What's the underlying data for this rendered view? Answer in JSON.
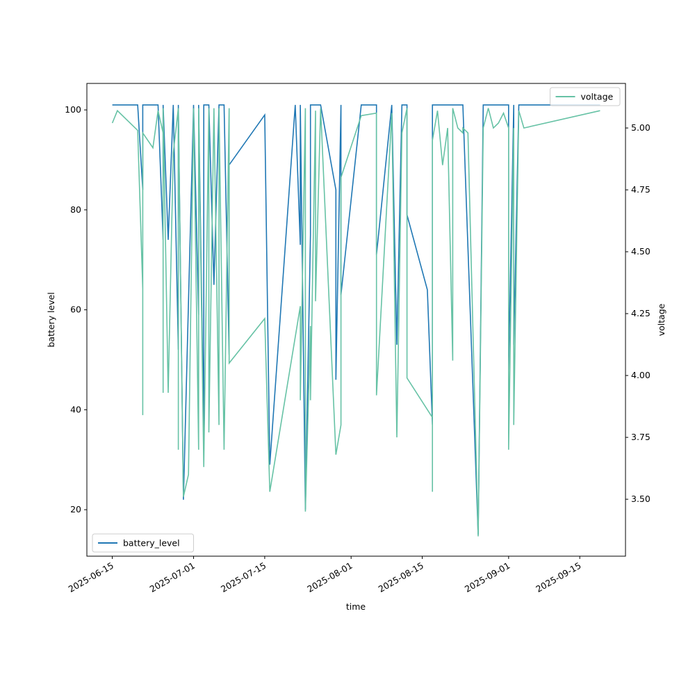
{
  "chart_data": {
    "type": "line",
    "xlabel": "time",
    "ylabel": "battery level",
    "y2label": "voltage",
    "xlim": [
      "2025-06-10",
      "2025-09-24"
    ],
    "xticks": [
      "2025-06-15",
      "2025-07-01",
      "2025-07-15",
      "2025-08-01",
      "2025-08-15",
      "2025-09-01",
      "2025-09-15"
    ],
    "ylim": [
      10.7,
      105.3
    ],
    "yticks": [
      20,
      40,
      60,
      80,
      100
    ],
    "y2lim": [
      3.27,
      5.18
    ],
    "y2ticks": [
      {
        "value": 3.5,
        "label": "3.50"
      },
      {
        "value": 3.75,
        "label": "3.75"
      },
      {
        "value": 4.0,
        "label": "4.00"
      },
      {
        "value": 4.25,
        "label": "4.25"
      },
      {
        "value": 4.5,
        "label": "4.50"
      },
      {
        "value": 4.75,
        "label": "4.75"
      },
      {
        "value": 5.0,
        "label": "5.00"
      }
    ],
    "series": [
      {
        "name": "battery_level",
        "color": "#1f77b4",
        "legend": "lower left",
        "x": [
          "2025-06-15",
          "2025-06-20",
          "2025-06-21",
          "2025-06-21",
          "2025-06-24",
          "2025-06-25",
          "2025-06-25",
          "2025-06-26",
          "2025-06-27",
          "2025-06-28",
          "2025-06-28",
          "2025-06-29",
          "2025-07-01",
          "2025-07-02",
          "2025-07-02",
          "2025-07-03",
          "2025-07-03",
          "2025-07-04",
          "2025-07-05",
          "2025-07-06",
          "2025-07-07",
          "2025-07-08",
          "2025-07-08",
          "2025-07-15",
          "2025-07-16",
          "2025-07-21",
          "2025-07-22",
          "2025-07-22",
          "2025-07-23",
          "2025-07-24",
          "2025-07-24",
          "2025-07-26",
          "2025-07-29",
          "2025-07-29",
          "2025-07-30",
          "2025-07-30",
          "2025-08-03",
          "2025-08-06",
          "2025-08-06",
          "2025-08-09",
          "2025-08-10",
          "2025-08-11",
          "2025-08-12",
          "2025-08-12",
          "2025-08-16",
          "2025-08-17",
          "2025-08-17",
          "2025-08-23",
          "2025-08-26",
          "2025-08-27",
          "2025-09-01",
          "2025-09-01",
          "2025-09-02",
          "2025-09-02",
          "2025-09-03",
          "2025-09-19"
        ],
        "values": [
          101,
          101,
          84,
          101,
          101,
          74,
          101,
          74,
          101,
          52,
          101,
          22,
          101,
          59,
          101,
          35,
          101,
          101,
          65,
          101,
          101,
          51,
          89,
          99,
          29,
          101,
          73,
          101,
          20,
          75,
          101,
          101,
          84,
          46,
          101,
          63,
          101,
          101,
          71,
          101,
          53,
          101,
          101,
          79,
          64,
          37,
          101,
          101,
          15,
          101,
          101,
          48,
          101,
          53,
          101,
          101
        ]
      },
      {
        "name": "voltage",
        "color": "#66c2a5",
        "axis": "y2",
        "legend": "upper right",
        "x": [
          "2025-06-15",
          "2025-06-16",
          "2025-06-20",
          "2025-06-21",
          "2025-06-21",
          "2025-06-21",
          "2025-06-23",
          "2025-06-24",
          "2025-06-25",
          "2025-06-25",
          "2025-06-25",
          "2025-06-26",
          "2025-06-27",
          "2025-06-28",
          "2025-06-28",
          "2025-06-28",
          "2025-06-29",
          "2025-06-30",
          "2025-07-01",
          "2025-07-02",
          "2025-07-02",
          "2025-07-03",
          "2025-07-04",
          "2025-07-04",
          "2025-07-05",
          "2025-07-06",
          "2025-07-06",
          "2025-07-07",
          "2025-07-08",
          "2025-07-08",
          "2025-07-15",
          "2025-07-16",
          "2025-07-22",
          "2025-07-22",
          "2025-07-23",
          "2025-07-23",
          "2025-07-24",
          "2025-07-24",
          "2025-07-25",
          "2025-07-25",
          "2025-07-26",
          "2025-07-29",
          "2025-07-30",
          "2025-07-30",
          "2025-08-03",
          "2025-08-06",
          "2025-08-06",
          "2025-08-06",
          "2025-08-09",
          "2025-08-10",
          "2025-08-11",
          "2025-08-12",
          "2025-08-12",
          "2025-08-17",
          "2025-08-17",
          "2025-08-17",
          "2025-08-18",
          "2025-08-19",
          "2025-08-20",
          "2025-08-21",
          "2025-08-21",
          "2025-08-22",
          "2025-08-23",
          "2025-08-23",
          "2025-08-24",
          "2025-08-26",
          "2025-08-27",
          "2025-08-28",
          "2025-08-29",
          "2025-08-30",
          "2025-08-31",
          "2025-09-01",
          "2025-09-01",
          "2025-09-02",
          "2025-09-02",
          "2025-09-03",
          "2025-09-04",
          "2025-09-19"
        ],
        "values": [
          5.02,
          5.07,
          4.99,
          4.35,
          3.84,
          4.98,
          4.92,
          5.07,
          4.98,
          3.93,
          5.08,
          3.93,
          4.9,
          5.08,
          3.7,
          5.08,
          3.51,
          3.6,
          5.08,
          3.7,
          5.08,
          3.63,
          5.08,
          3.77,
          5.08,
          3.8,
          5.08,
          3.7,
          5.08,
          4.05,
          4.23,
          3.53,
          4.28,
          3.9,
          5.08,
          3.45,
          4.2,
          3.9,
          5.07,
          4.3,
          5.08,
          3.68,
          3.8,
          4.8,
          5.05,
          5.06,
          4.25,
          3.92,
          5.06,
          3.75,
          4.98,
          5.08,
          3.99,
          3.83,
          3.53,
          4.95,
          5.07,
          4.85,
          5.0,
          4.06,
          5.08,
          5.0,
          4.98,
          5.0,
          4.98,
          3.35,
          5.0,
          5.08,
          5.0,
          5.02,
          5.06,
          5.0,
          3.7,
          5.0,
          3.8,
          5.07,
          5.0,
          5.07
        ]
      }
    ]
  }
}
